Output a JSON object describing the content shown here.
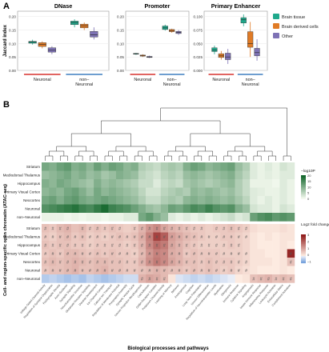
{
  "panel_labels": {
    "a": "A",
    "b": "B"
  },
  "colors": {
    "brain": "#1fa98c",
    "derived": "#e07b26",
    "other": "#7e72b5",
    "neuronal_bar": "#d7322f",
    "nonneuronal_bar": "#3e7ec1"
  },
  "chart_data": [
    {
      "type": "box",
      "title": "DNase",
      "ylabel": "Jaccard index",
      "ylim": [
        0,
        0.22
      ],
      "ytick_labels": [
        "0.00",
        "0.05",
        "0.10",
        "0.15",
        "0.20"
      ],
      "yticks": [
        0,
        0.05,
        0.1,
        0.15,
        0.2
      ],
      "categories": [
        "Neuronal",
        "non–\nNeuronal"
      ],
      "series": [
        {
          "name": "Brain tissue",
          "boxes": [
            [
              0.096,
              0.101,
              0.105,
              0.108,
              0.114
            ],
            [
              0.16,
              0.17,
              0.178,
              0.183,
              0.19
            ]
          ]
        },
        {
          "name": "Brain derived cells",
          "boxes": [
            [
              0.082,
              0.089,
              0.096,
              0.103,
              0.108
            ],
            [
              0.15,
              0.158,
              0.166,
              0.172,
              0.178
            ]
          ]
        },
        {
          "name": "Other",
          "boxes": [
            [
              0.06,
              0.068,
              0.075,
              0.084,
              0.09
            ],
            [
              0.115,
              0.124,
              0.132,
              0.145,
              0.16
            ]
          ]
        }
      ]
    },
    {
      "type": "box",
      "title": "Promoter",
      "ylim": [
        0,
        0.22
      ],
      "ytick_labels": [
        "0.00",
        "0.05",
        "0.10",
        "0.15",
        "0.20"
      ],
      "yticks": [
        0,
        0.05,
        0.1,
        0.15,
        0.2
      ],
      "categories": [
        "Neuronal",
        "non–\nNeuronal"
      ],
      "series": [
        {
          "name": "Brain tissue",
          "boxes": [
            [
              0.058,
              0.06,
              0.062,
              0.063,
              0.065
            ],
            [
              0.148,
              0.152,
              0.158,
              0.165,
              0.17
            ]
          ]
        },
        {
          "name": "Brain derived cells",
          "boxes": [
            [
              0.05,
              0.053,
              0.055,
              0.057,
              0.06
            ],
            [
              0.14,
              0.144,
              0.148,
              0.152,
              0.155
            ]
          ]
        },
        {
          "name": "Other",
          "boxes": [
            [
              0.046,
              0.048,
              0.05,
              0.052,
              0.055
            ],
            [
              0.132,
              0.137,
              0.141,
              0.145,
              0.15
            ]
          ]
        }
      ]
    },
    {
      "type": "box",
      "title": "Primary Enhancer",
      "ylim": [
        0,
        0.11
      ],
      "ytick_labels": [
        "0.000",
        "0.025",
        "0.050",
        "0.075",
        "0.100"
      ],
      "yticks": [
        0,
        0.025,
        0.05,
        0.075,
        0.1
      ],
      "categories": [
        "Neuronal",
        "non–\nNeuronal"
      ],
      "series": [
        {
          "name": "Brain tissue",
          "boxes": [
            [
              0.03,
              0.035,
              0.038,
              0.042,
              0.046
            ],
            [
              0.082,
              0.088,
              0.094,
              0.098,
              0.104
            ]
          ]
        },
        {
          "name": "Brain derived cells",
          "boxes": [
            [
              0.02,
              0.024,
              0.027,
              0.031,
              0.036
            ],
            [
              0.025,
              0.043,
              0.05,
              0.072,
              0.09
            ]
          ]
        },
        {
          "name": "Other",
          "boxes": [
            [
              0.012,
              0.02,
              0.025,
              0.032,
              0.04
            ],
            [
              0.018,
              0.027,
              0.033,
              0.041,
              0.058
            ]
          ]
        }
      ]
    },
    {
      "type": "heatmap",
      "title": "",
      "ylabel": "Cell- and region-specific open chromatin (ATAC-seq)",
      "xlabel": "Biological processes and pathways",
      "rows": [
        "Striatum",
        "Mediodorsal Thalamus",
        "Hippocampus",
        "Primary Visual Cortex",
        "Neocortex",
        "Neuronal",
        "non–Neuronal"
      ],
      "columns": [
        "Voltage-Gated Channel Activity",
        "Regulation of Synapse Organization",
        "Postsynaptic Density",
        "Axon Guidance",
        "Synaptic Signaling",
        "Neurotransmitter Secretion",
        "Glutamate Receptor Signaling",
        "Dendrite Development",
        "Ion Channel Complex",
        "Calcium Ion Transport",
        "Regulation of Membrane Potential",
        "Presynapse Assembly",
        "Synaptic Vesicle Cycle",
        "Neuron Projection Morphogenesis",
        "Cell Adhesion",
        "GABA Receptor Complex",
        "Potassium Channel Activity",
        "Learning or Memory",
        "Behavior",
        "Axonogenesis",
        "Cognition",
        "Long-Term Potentiation",
        "Neuron Differentiation",
        "Regulation of Neurotransmitter Levels",
        "Myelination",
        "Gliogenesis",
        "Immune Response",
        "Cytokine Signaling",
        "Angiogenesis",
        "Innate Immune Response",
        "Inflammatory Response",
        "Leukocyte Activation",
        "Extracellular Matrix",
        "Complement Activation"
      ],
      "legend_top": {
        "title": "−log10P",
        "ticks": [
          "20",
          "15",
          "10",
          "5",
          "0"
        ]
      },
      "legend_bottom": {
        "title": "Log2 fold change",
        "ticks": [
          "3",
          "2",
          "1",
          "0",
          "−1"
        ]
      },
      "top_values": [
        [
          0.55,
          0.5,
          0.6,
          0.65,
          0.5,
          0.55,
          0.45,
          0.6,
          0.5,
          0.6,
          0.55,
          0.45,
          0.5,
          0.3,
          0.25,
          0.2,
          0.3,
          0.35,
          0.3,
          0.5,
          0.6,
          0.55,
          0.45,
          0.5,
          0.55,
          0.6,
          0.4,
          0.3,
          0.1,
          0.05,
          0.1,
          0.05,
          0.15,
          0.1
        ],
        [
          0.4,
          0.45,
          0.5,
          0.55,
          0.45,
          0.5,
          0.4,
          0.45,
          0.35,
          0.4,
          0.5,
          0.45,
          0.4,
          0.25,
          0.2,
          0.15,
          0.25,
          0.3,
          0.25,
          0.4,
          0.45,
          0.4,
          0.35,
          0.4,
          0.45,
          0.5,
          0.35,
          0.25,
          0.1,
          0.05,
          0.08,
          0.05,
          0.1,
          0.1
        ],
        [
          0.5,
          0.45,
          0.55,
          0.5,
          0.45,
          0.4,
          0.35,
          0.5,
          0.4,
          0.45,
          0.4,
          0.35,
          0.3,
          0.2,
          0.2,
          0.1,
          0.2,
          0.25,
          0.2,
          0.35,
          0.4,
          0.35,
          0.3,
          0.35,
          0.4,
          0.45,
          0.3,
          0.2,
          0.05,
          0.05,
          0.05,
          0.02,
          0.1,
          0.05
        ],
        [
          0.45,
          0.5,
          0.45,
          0.55,
          0.6,
          0.5,
          0.4,
          0.55,
          0.45,
          0.5,
          0.45,
          0.4,
          0.35,
          0.25,
          0.15,
          0.15,
          0.25,
          0.3,
          0.35,
          0.3,
          0.45,
          0.4,
          0.45,
          0.4,
          0.35,
          0.4,
          0.3,
          0.2,
          0.1,
          0.08,
          0.05,
          0.05,
          0.1,
          0.05
        ],
        [
          0.55,
          0.6,
          0.5,
          0.6,
          0.65,
          0.55,
          0.5,
          0.55,
          0.6,
          0.55,
          0.5,
          0.45,
          0.4,
          0.3,
          0.2,
          0.2,
          0.3,
          0.35,
          0.3,
          0.45,
          0.5,
          0.45,
          0.5,
          0.45,
          0.4,
          0.45,
          0.35,
          0.25,
          0.1,
          0.05,
          0.1,
          0.05,
          0.1,
          0.05
        ],
        [
          0.7,
          0.75,
          0.8,
          0.85,
          0.9,
          0.8,
          0.75,
          0.85,
          0.95,
          0.8,
          0.75,
          0.7,
          0.6,
          0.5,
          0.4,
          0.35,
          0.45,
          0.6,
          0.55,
          0.65,
          0.75,
          0.7,
          0.8,
          0.7,
          0.65,
          0.7,
          0.5,
          0.4,
          0.15,
          0.1,
          0.1,
          0.05,
          0.15,
          0.1
        ],
        [
          0.05,
          0.05,
          0.05,
          0.02,
          0.05,
          0.02,
          0.05,
          0.05,
          0.02,
          0.05,
          0.05,
          0.1,
          0.1,
          0.55,
          0.65,
          0.5,
          0.4,
          0.1,
          0.05,
          0.1,
          0.05,
          0.1,
          0.05,
          0.1,
          0.15,
          0.2,
          0.1,
          0.15,
          0.6,
          0.7,
          0.75,
          0.65,
          0.7,
          0.65
        ]
      ],
      "bottom_values": [
        [
          0.6,
          0.5,
          0.7,
          0.8,
          0.6,
          0.7,
          0.5,
          0.6,
          0.5,
          0.6,
          0.5,
          0.4,
          0.5,
          0.8,
          1.2,
          1.4,
          1.0,
          0.8,
          0.7,
          0.6,
          0.5,
          0.5,
          0.4,
          0.5,
          0.5,
          0.6,
          0.5,
          0.4,
          0.2,
          0.1,
          0.1,
          0.1,
          0.2,
          0.1
        ],
        [
          0.5,
          0.4,
          0.6,
          0.7,
          0.5,
          0.6,
          0.4,
          0.5,
          0.4,
          0.5,
          0.6,
          0.5,
          0.6,
          0.9,
          1.5,
          2.4,
          2.0,
          1.1,
          0.9,
          0.7,
          0.6,
          0.5,
          0.4,
          0.4,
          0.5,
          0.5,
          0.4,
          0.3,
          0.1,
          0.0,
          0.1,
          0.0,
          0.1,
          0.1
        ],
        [
          0.6,
          0.5,
          0.6,
          0.6,
          0.5,
          0.5,
          0.4,
          0.5,
          0.5,
          0.5,
          0.5,
          0.4,
          0.5,
          0.8,
          1.4,
          1.8,
          1.6,
          1.0,
          0.8,
          0.6,
          0.5,
          0.4,
          0.4,
          0.4,
          0.4,
          0.5,
          0.4,
          0.3,
          0.1,
          0.0,
          0.0,
          0.0,
          0.1,
          0.0
        ],
        [
          0.5,
          0.6,
          0.5,
          0.7,
          0.7,
          0.6,
          0.5,
          0.6,
          0.5,
          0.6,
          0.5,
          0.5,
          0.4,
          0.7,
          1.2,
          1.5,
          1.4,
          0.9,
          0.8,
          0.5,
          0.6,
          0.5,
          0.5,
          0.5,
          0.4,
          0.4,
          0.4,
          0.3,
          0.1,
          0.1,
          0.0,
          0.0,
          0.1,
          2.8
        ],
        [
          0.6,
          0.7,
          0.6,
          0.7,
          0.8,
          0.7,
          0.6,
          0.7,
          0.7,
          0.6,
          0.6,
          0.5,
          0.5,
          0.8,
          1.3,
          1.6,
          1.4,
          1.0,
          0.8,
          0.6,
          0.6,
          0.5,
          0.6,
          0.5,
          0.5,
          0.5,
          0.4,
          0.3,
          0.1,
          0.1,
          0.1,
          0.0,
          0.1,
          0.6
        ],
        [
          0.5,
          0.6,
          0.6,
          0.7,
          0.8,
          0.6,
          0.6,
          0.7,
          0.8,
          0.6,
          0.6,
          0.5,
          0.5,
          0.6,
          0.7,
          0.8,
          0.7,
          0.6,
          0.6,
          0.5,
          0.6,
          0.5,
          0.6,
          0.5,
          0.4,
          0.5,
          0.3,
          0.2,
          0.1,
          0.0,
          0.0,
          0.0,
          0.1,
          0.0
        ],
        [
          -0.5,
          -0.4,
          -0.5,
          -0.6,
          -0.5,
          -0.6,
          -0.4,
          -0.5,
          -0.6,
          -0.5,
          -0.4,
          -0.3,
          -0.3,
          0.8,
          1.0,
          0.9,
          0.7,
          0.1,
          -0.2,
          -0.3,
          -0.4,
          -0.3,
          -0.4,
          -0.3,
          -0.2,
          -0.1,
          0.0,
          0.1,
          0.6,
          0.7,
          0.8,
          0.6,
          0.7,
          0.6
        ]
      ],
      "significant": [
        [
          1,
          1,
          1,
          1,
          0,
          1,
          1,
          1,
          1,
          1,
          1,
          0,
          1,
          1,
          1,
          1,
          1,
          1,
          1,
          1,
          1,
          1,
          0,
          1,
          1,
          1,
          1,
          1,
          0,
          0,
          0,
          0,
          0,
          0
        ],
        [
          1,
          1,
          1,
          1,
          1,
          1,
          1,
          1,
          1,
          1,
          1,
          1,
          1,
          1,
          1,
          1,
          1,
          1,
          1,
          1,
          1,
          1,
          1,
          1,
          1,
          1,
          1,
          1,
          0,
          0,
          0,
          0,
          0,
          0
        ],
        [
          1,
          1,
          1,
          1,
          1,
          1,
          1,
          1,
          1,
          1,
          1,
          1,
          1,
          1,
          1,
          1,
          1,
          1,
          1,
          1,
          1,
          1,
          1,
          1,
          1,
          1,
          1,
          0,
          0,
          0,
          0,
          0,
          0,
          0
        ],
        [
          1,
          1,
          1,
          1,
          1,
          1,
          1,
          1,
          1,
          1,
          1,
          1,
          1,
          1,
          1,
          1,
          1,
          1,
          1,
          1,
          1,
          1,
          1,
          1,
          1,
          1,
          1,
          1,
          0,
          0,
          0,
          0,
          0,
          1
        ],
        [
          1,
          1,
          1,
          1,
          1,
          1,
          1,
          1,
          1,
          1,
          1,
          1,
          1,
          1,
          1,
          1,
          1,
          1,
          1,
          1,
          1,
          1,
          1,
          1,
          1,
          1,
          1,
          1,
          0,
          0,
          0,
          0,
          0,
          1
        ],
        [
          1,
          1,
          1,
          1,
          1,
          1,
          1,
          1,
          1,
          1,
          1,
          1,
          1,
          1,
          1,
          1,
          1,
          1,
          1,
          1,
          1,
          1,
          1,
          1,
          1,
          1,
          1,
          1,
          0,
          0,
          0,
          0,
          0,
          0
        ],
        [
          0,
          0,
          0,
          0,
          0,
          0,
          0,
          0,
          0,
          0,
          0,
          0,
          0,
          1,
          1,
          1,
          1,
          0,
          0,
          0,
          0,
          0,
          0,
          0,
          0,
          0,
          0,
          0,
          1,
          1,
          1,
          1,
          1,
          1
        ]
      ]
    }
  ]
}
